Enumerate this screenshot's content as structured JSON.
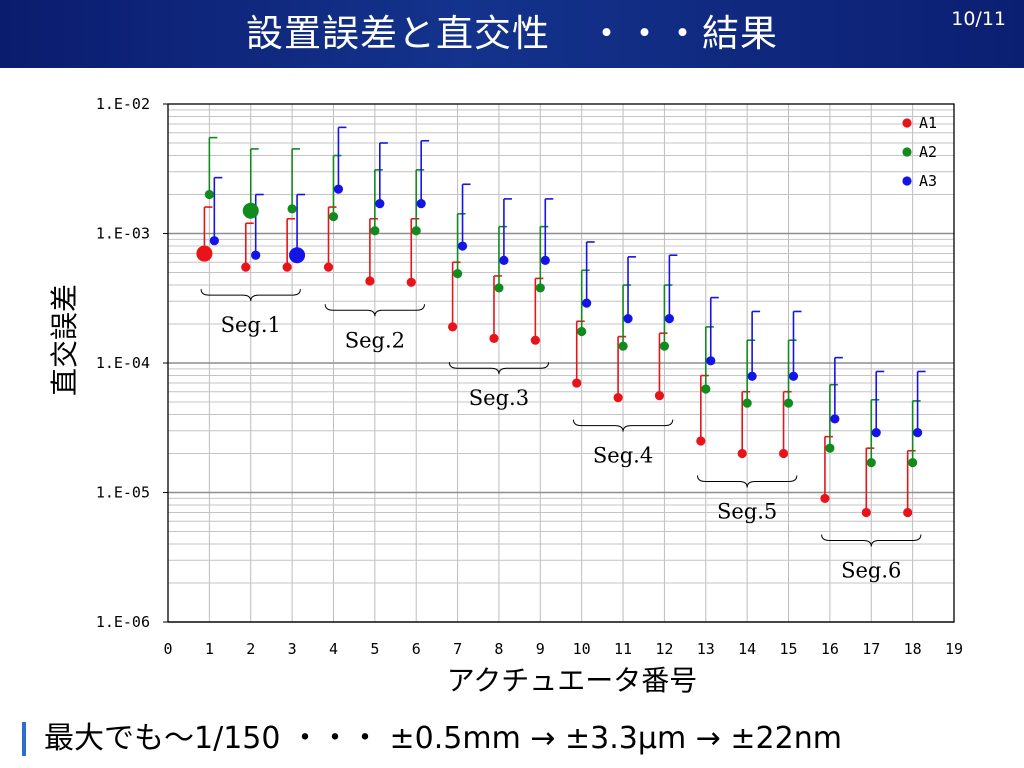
{
  "slide": {
    "title": "設置誤差と直交性　・・・結果",
    "page_number": "10/11",
    "footer_text": "最大でも～1/150 ・・・ ±0.5mm → ±3.3μm → ±22nm"
  },
  "chart_data": {
    "type": "scatter",
    "xlabel": "アクチュエータ番号",
    "ylabel": "直交誤差",
    "xlim": [
      0,
      19
    ],
    "ylim": [
      1e-06,
      0.01
    ],
    "yscale": "log",
    "grid": true,
    "legend_position": "top-right",
    "x_tick_labels": [
      "0",
      "1",
      "2",
      "3",
      "4",
      "5",
      "6",
      "7",
      "8",
      "9",
      "10",
      "11",
      "12",
      "13",
      "14",
      "15",
      "16",
      "17",
      "18",
      "19"
    ],
    "y_tick_labels": [
      "1.E-02",
      "1.E-03",
      "1.E-04",
      "1.E-05",
      "1.E-06"
    ],
    "series": [
      {
        "name": "A1",
        "color": "#e8141a",
        "x": [
          1,
          2,
          3,
          4,
          5,
          6,
          7,
          8,
          9,
          10,
          11,
          12,
          13,
          14,
          15,
          16,
          17,
          18
        ],
        "y": [
          0.0007,
          0.00055,
          0.00055,
          0.00055,
          0.00043,
          0.00042,
          0.00019,
          0.000155,
          0.00015,
          7e-05,
          5.4e-05,
          5.6e-05,
          2.5e-05,
          2e-05,
          2e-05,
          9e-06,
          7e-06,
          7e-06
        ],
        "err_upper": [
          0.0016,
          0.0012,
          0.0013,
          0.0016,
          0.0013,
          0.0013,
          0.0006,
          0.00047,
          0.00045,
          0.00021,
          0.00016,
          0.00017,
          8e-05,
          6e-05,
          6e-05,
          2.7e-05,
          2.2e-05,
          2.1e-05
        ],
        "large_marker_at": [
          1
        ]
      },
      {
        "name": "A2",
        "color": "#118a1e",
        "x": [
          1,
          2,
          3,
          4,
          5,
          6,
          7,
          8,
          9,
          10,
          11,
          12,
          13,
          14,
          15,
          16,
          17,
          18
        ],
        "y": [
          0.002,
          0.0015,
          0.00155,
          0.00135,
          0.00105,
          0.00105,
          0.00049,
          0.00038,
          0.00038,
          0.000175,
          0.000135,
          0.000135,
          6.3e-05,
          4.9e-05,
          4.9e-05,
          2.2e-05,
          1.7e-05,
          1.7e-05
        ],
        "err_upper": [
          0.0055,
          0.0045,
          0.0045,
          0.004,
          0.0031,
          0.0031,
          0.00142,
          0.00113,
          0.00113,
          0.00052,
          0.0004,
          0.0004,
          0.00019,
          0.00015,
          0.00015,
          6.8e-05,
          5.2e-05,
          5.1e-05
        ],
        "large_marker_at": [
          2
        ]
      },
      {
        "name": "A3",
        "color": "#1414e6",
        "x": [
          1,
          2,
          3,
          4,
          5,
          6,
          7,
          8,
          9,
          10,
          11,
          12,
          13,
          14,
          15,
          16,
          17,
          18
        ],
        "y": [
          0.00088,
          0.00068,
          0.00068,
          0.0022,
          0.0017,
          0.0017,
          0.0008,
          0.00062,
          0.00062,
          0.00029,
          0.00022,
          0.00022,
          0.000104,
          7.9e-05,
          7.9e-05,
          3.7e-05,
          2.9e-05,
          2.9e-05
        ],
        "err_upper": [
          0.0027,
          0.002,
          0.002,
          0.0066,
          0.005,
          0.0052,
          0.0024,
          0.00185,
          0.00185,
          0.00086,
          0.00066,
          0.00068,
          0.00032,
          0.00025,
          0.00025,
          0.00011,
          8.6e-05,
          8.6e-05
        ],
        "large_marker_at": [
          3
        ]
      }
    ],
    "annotations": [
      {
        "text": "Seg.1",
        "x_from": 0.8,
        "x_to": 3.2
      },
      {
        "text": "Seg.2",
        "x_from": 3.8,
        "x_to": 6.2
      },
      {
        "text": "Seg.3",
        "x_from": 6.8,
        "x_to": 9.2
      },
      {
        "text": "Seg.4",
        "x_from": 9.8,
        "x_to": 12.2
      },
      {
        "text": "Seg.5",
        "x_from": 12.8,
        "x_to": 15.2
      },
      {
        "text": "Seg.6",
        "x_from": 15.8,
        "x_to": 18.2
      }
    ]
  }
}
